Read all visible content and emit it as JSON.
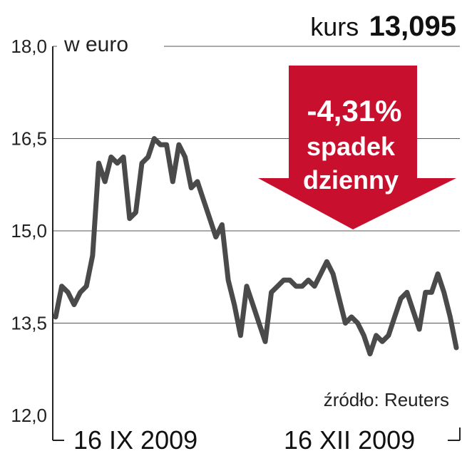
{
  "header": {
    "label": "kurs",
    "value": "13,095"
  },
  "badge": {
    "change": "-4,31%",
    "line1": "spadek",
    "line2": "dzienny",
    "color": "#c8102e"
  },
  "source": "źródło: Reuters",
  "chart_data": {
    "type": "line",
    "unit_label": "w euro",
    "ylim": [
      12.0,
      18.0
    ],
    "yticks": [
      "18,0",
      "16,5",
      "15,0",
      "13,5",
      "12,0"
    ],
    "ytick_values": [
      18.0,
      16.5,
      15.0,
      13.5,
      12.0
    ],
    "x_labels": [
      "16 IX 2009",
      "16 XII 2009"
    ],
    "grid": true,
    "line_color": "#4a4a4a",
    "values": [
      13.6,
      14.1,
      14.0,
      13.8,
      14.0,
      14.1,
      14.6,
      16.1,
      15.8,
      16.2,
      16.1,
      16.2,
      15.2,
      15.3,
      16.1,
      16.2,
      16.5,
      16.4,
      16.4,
      15.8,
      16.4,
      16.2,
      15.7,
      15.8,
      15.5,
      15.2,
      14.9,
      15.1,
      14.2,
      13.8,
      13.3,
      14.1,
      13.8,
      13.5,
      13.2,
      14.0,
      14.1,
      14.2,
      14.2,
      14.1,
      14.1,
      14.2,
      14.1,
      14.3,
      14.5,
      14.3,
      13.9,
      13.5,
      13.6,
      13.5,
      13.3,
      13.0,
      13.3,
      13.2,
      13.3,
      13.6,
      13.9,
      14.0,
      13.7,
      13.4,
      14.0,
      14.0,
      14.3,
      14.0,
      13.6,
      13.1
    ]
  }
}
